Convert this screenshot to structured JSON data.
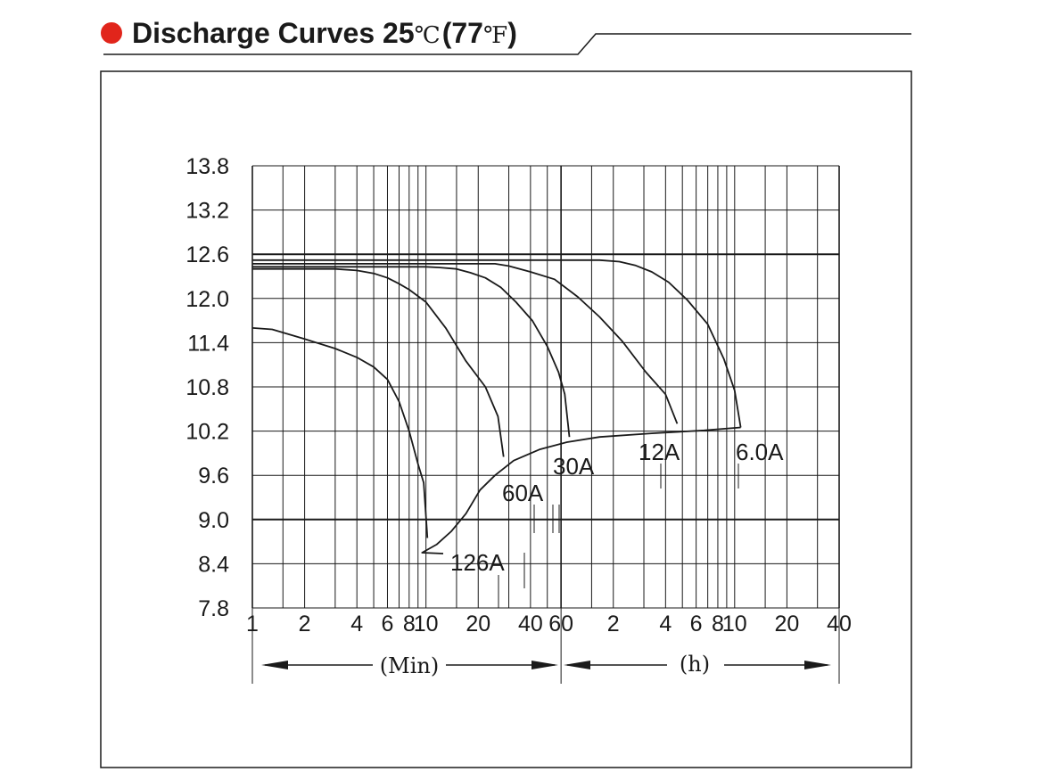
{
  "header": {
    "title": "Discharge Curves 25",
    "celsius": "℃",
    "fahrenheit_open": "(77",
    "fahrenheit_unit": "℉",
    "fahrenheit_close": ")",
    "bullet_color": "#e1251b"
  },
  "chart_data": {
    "type": "line",
    "title": "Discharge Curves 25℃(77℉)",
    "xscale": "log",
    "xlim_minutes": [
      1,
      2400
    ],
    "ylim": [
      7.8,
      13.8
    ],
    "yticks": [
      7.8,
      8.4,
      9.0,
      9.6,
      10.2,
      10.8,
      11.4,
      12.0,
      12.6,
      13.2,
      13.8
    ],
    "ytick_labels": [
      "7.8",
      "8.4",
      "9.0",
      "9.6",
      "10.2",
      "10.8",
      "11.4",
      "12.0",
      "12.6",
      "13.2",
      "13.8"
    ],
    "xtick_labels": [
      {
        "label": "1",
        "minutes": 1
      },
      {
        "label": "2",
        "minutes": 2
      },
      {
        "label": "4",
        "minutes": 4
      },
      {
        "label": "6",
        "minutes": 6
      },
      {
        "label": "8",
        "minutes": 8
      },
      {
        "label": "10",
        "minutes": 10
      },
      {
        "label": "20",
        "minutes": 20
      },
      {
        "label": "40",
        "minutes": 40
      },
      {
        "label": "60",
        "minutes": 60
      },
      {
        "label": "2",
        "minutes": 120
      },
      {
        "label": "4",
        "minutes": 240
      },
      {
        "label": "6",
        "minutes": 360
      },
      {
        "label": "8",
        "minutes": 480
      },
      {
        "label": "10",
        "minutes": 600
      },
      {
        "label": "20",
        "minutes": 1200
      },
      {
        "label": "40",
        "minutes": 2400
      }
    ],
    "x_range_labels": {
      "minutes": "(Min)",
      "hours": "(h)"
    },
    "series": [
      {
        "name": "126A",
        "points": [
          [
            1.0,
            11.6
          ],
          [
            1.3,
            11.58
          ],
          [
            2.0,
            11.45
          ],
          [
            3.0,
            11.32
          ],
          [
            4.0,
            11.2
          ],
          [
            5.0,
            11.07
          ],
          [
            6.0,
            10.9
          ],
          [
            7.0,
            10.6
          ],
          [
            8.0,
            10.2
          ],
          [
            9.0,
            9.75
          ],
          [
            9.7,
            9.5
          ],
          [
            10.2,
            8.75
          ]
        ]
      },
      {
        "name": "60A",
        "points": [
          [
            1.0,
            12.4
          ],
          [
            2.0,
            12.4
          ],
          [
            3.0,
            12.4
          ],
          [
            4.0,
            12.38
          ],
          [
            5.0,
            12.34
          ],
          [
            6.0,
            12.28
          ],
          [
            7.0,
            12.2
          ],
          [
            8.0,
            12.12
          ],
          [
            10.0,
            11.95
          ],
          [
            13.0,
            11.6
          ],
          [
            17.0,
            11.15
          ],
          [
            22.0,
            10.8
          ],
          [
            26.0,
            10.4
          ],
          [
            28.0,
            9.85
          ]
        ]
      },
      {
        "name": "30A",
        "points": [
          [
            1.0,
            12.43
          ],
          [
            10.0,
            12.43
          ],
          [
            12.0,
            12.42
          ],
          [
            15.0,
            12.4
          ],
          [
            18.0,
            12.35
          ],
          [
            22.0,
            12.28
          ],
          [
            27.0,
            12.15
          ],
          [
            33.0,
            11.95
          ],
          [
            41.0,
            11.7
          ],
          [
            50.0,
            11.35
          ],
          [
            58.0,
            11.0
          ],
          [
            63.0,
            10.7
          ],
          [
            67.0,
            10.12
          ]
        ]
      },
      {
        "name": "12A",
        "points": [
          [
            1.0,
            12.47
          ],
          [
            20.0,
            12.47
          ],
          [
            25.0,
            12.47
          ],
          [
            30.0,
            12.44
          ],
          [
            40.0,
            12.36
          ],
          [
            55.0,
            12.26
          ],
          [
            75.0,
            12.02
          ],
          [
            100.0,
            11.75
          ],
          [
            135.0,
            11.42
          ],
          [
            185.0,
            11.0
          ],
          [
            240.0,
            10.7
          ],
          [
            280.0,
            10.3
          ]
        ]
      },
      {
        "name": "6.0A",
        "points": [
          [
            1.0,
            12.52
          ],
          [
            30.0,
            12.52
          ],
          [
            100.0,
            12.52
          ],
          [
            130.0,
            12.5
          ],
          [
            160.0,
            12.45
          ],
          [
            200.0,
            12.36
          ],
          [
            250.0,
            12.22
          ],
          [
            320.0,
            11.98
          ],
          [
            420.0,
            11.65
          ],
          [
            520.0,
            11.18
          ],
          [
            600.0,
            10.75
          ],
          [
            650.0,
            10.25
          ]
        ]
      }
    ],
    "cutoff_line": {
      "points": [
        [
          9.5,
          8.55
        ],
        [
          11.5,
          8.66
        ],
        [
          14.0,
          8.84
        ],
        [
          17.0,
          9.08
        ],
        [
          20.5,
          9.4
        ],
        [
          25.0,
          9.6
        ],
        [
          32.0,
          9.8
        ],
        [
          45.0,
          9.95
        ],
        [
          65.0,
          10.05
        ],
        [
          100.0,
          10.12
        ],
        [
          200.0,
          10.17
        ],
        [
          400.0,
          10.21
        ],
        [
          650.0,
          10.25
        ]
      ]
    }
  }
}
